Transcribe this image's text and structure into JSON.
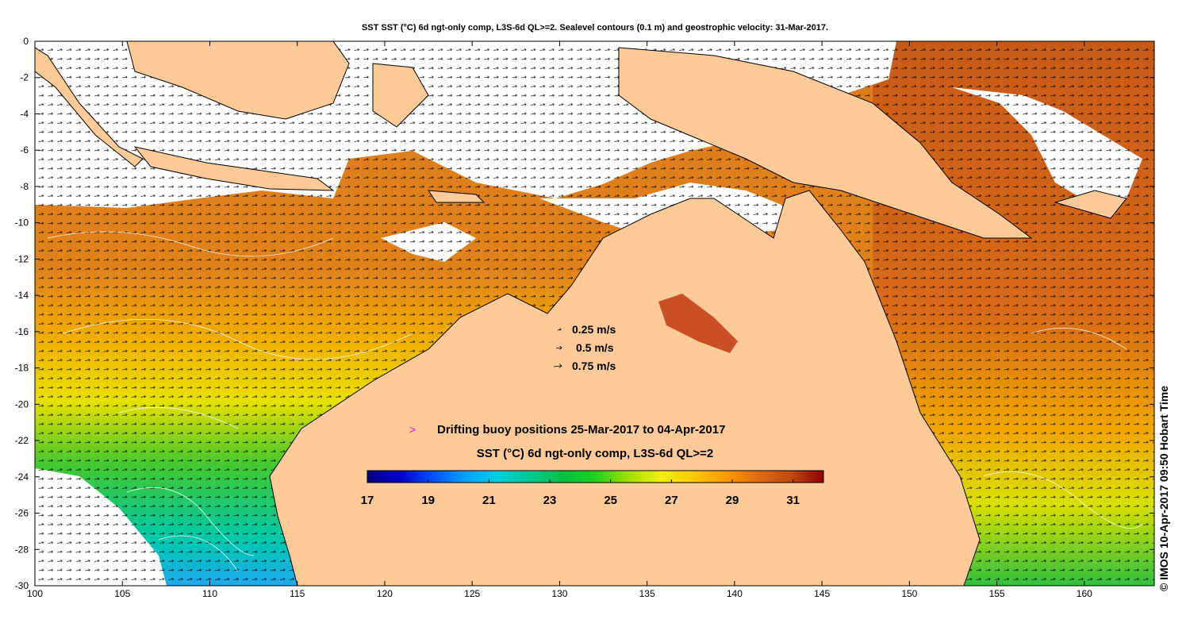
{
  "title": "SST SST (°C) 6d ngt-only comp, L3S-6d QL>=2. Sealevel contours (0.1 m) and geostrophic velocity: 31-Mar-2017.",
  "credit": "© IMOS 10-Apr-2017 09:50 Hobart Time",
  "axes": {
    "lon_range": [
      100,
      164
    ],
    "lat_range": [
      -30,
      0
    ],
    "lon_ticks": [
      "100",
      "105",
      "110",
      "115",
      "120",
      "125",
      "130",
      "135",
      "140",
      "145",
      "150",
      "155",
      "160"
    ],
    "lat_ticks": [
      "0",
      "-2",
      "-4",
      "-6",
      "-8",
      "-10",
      "-12",
      "-14",
      "-16",
      "-18",
      "-20",
      "-22",
      "-24",
      "-26",
      "-28",
      "-30"
    ]
  },
  "velocity_legend": {
    "entries": [
      {
        "label": "0.25 m/s",
        "speed": 0.25
      },
      {
        "label": "0.5 m/s",
        "speed": 0.5
      },
      {
        "label": "0.75 m/s",
        "speed": 0.75
      }
    ]
  },
  "buoy_legend": {
    "label": "Drifting buoy positions 25-Mar-2017 to 04-Apr-2017",
    "marker_color": "#ff00ff",
    "marker": ">"
  },
  "colorbar": {
    "title": "SST (°C) 6d ngt-only comp, L3S-6d QL>=2",
    "min": 17,
    "max": 32,
    "tick_labels": [
      "17",
      "19",
      "21",
      "23",
      "25",
      "27",
      "29",
      "31"
    ],
    "tick_values": [
      17,
      19,
      21,
      23,
      25,
      27,
      29,
      31
    ],
    "colors": [
      "#000080",
      "#0000c8",
      "#0050ff",
      "#00a0ff",
      "#00d0e0",
      "#00c890",
      "#00c040",
      "#20d020",
      "#a0e000",
      "#f0f000",
      "#ffc800",
      "#ff9a00",
      "#e06a10",
      "#c04a10",
      "#900000"
    ]
  },
  "colors": {
    "land": "#fdca98",
    "cloud": "#ffffff",
    "tropical_sea": "#e07a1e",
    "coastline": "#000000"
  }
}
